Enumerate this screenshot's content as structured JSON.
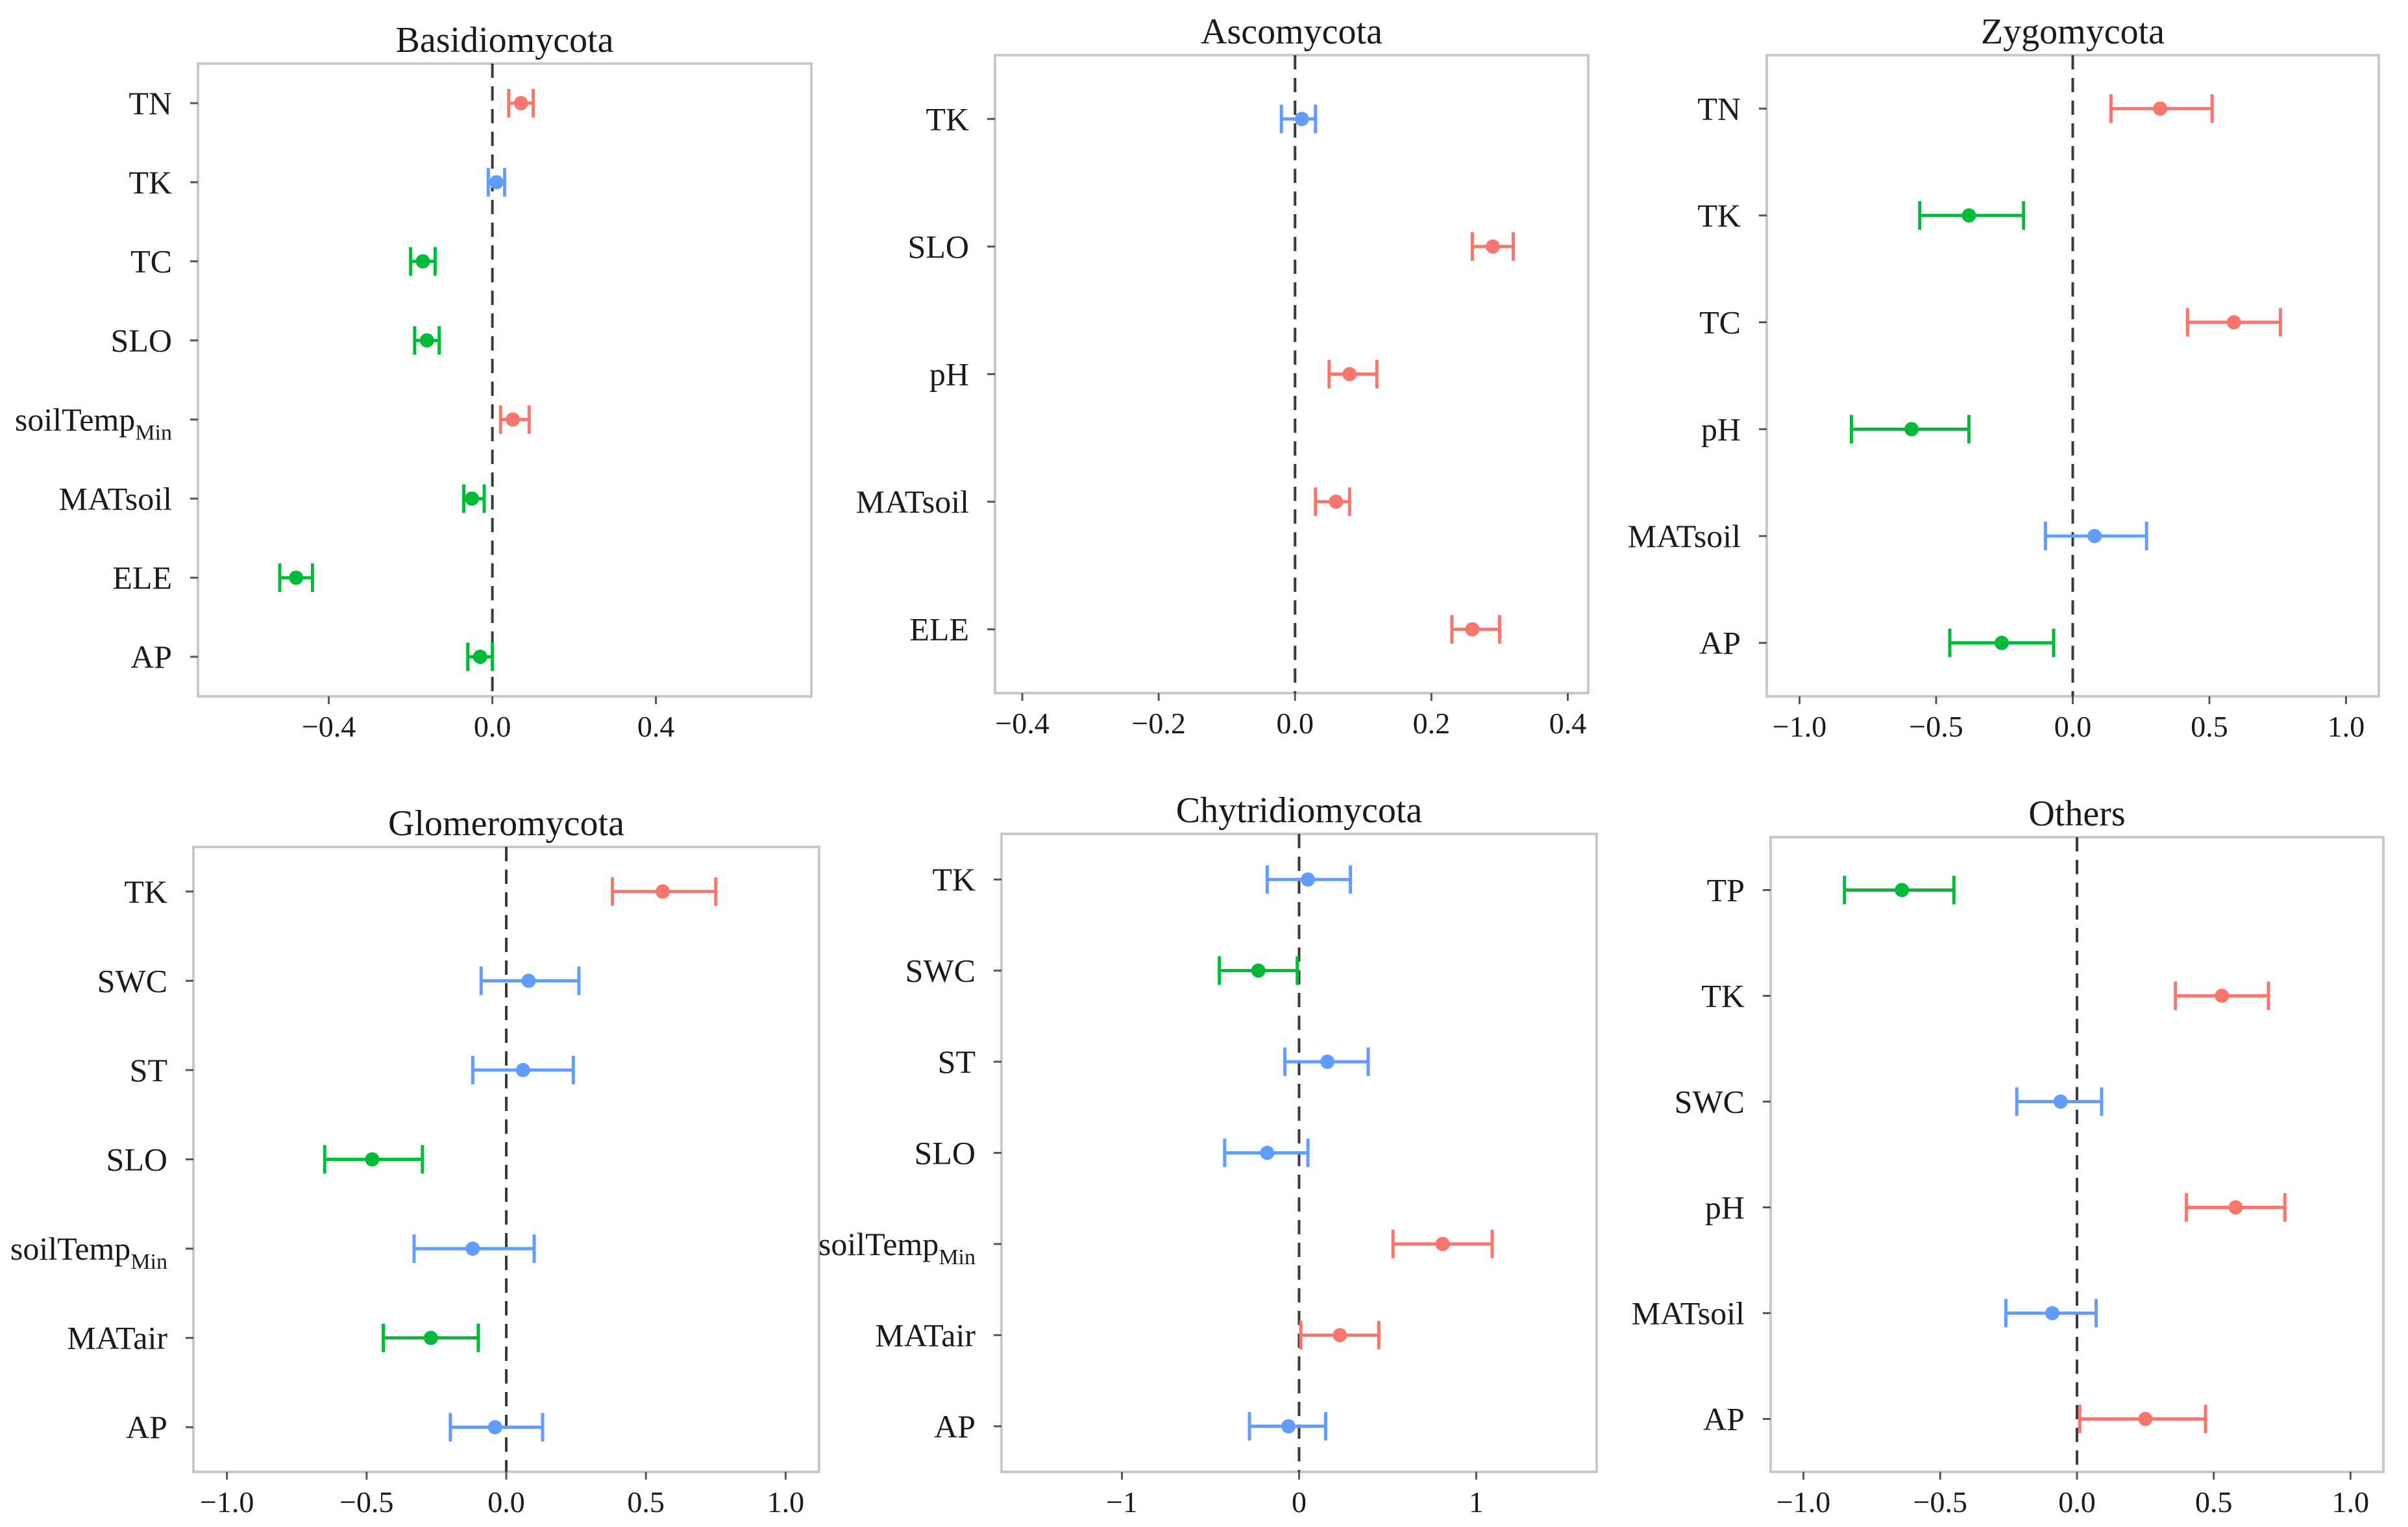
{
  "colors": {
    "positive": "#f8766d",
    "neutral": "#619cff",
    "negative": "#00ba38",
    "frame": "#c8c8c8",
    "zero_line": "#3a3a3a"
  },
  "chart_data": [
    {
      "type": "errorbar",
      "title": "Basidiomycota",
      "xlim": [
        -0.72,
        0.78
      ],
      "xticks": [
        -0.4,
        0.0,
        0.4
      ],
      "xtick_labels": [
        "−0.4",
        "0.0",
        "0.4"
      ],
      "variables": [
        {
          "label": "TN",
          "sub": "",
          "value": 0.07,
          "low": 0.04,
          "high": 0.1,
          "color": "positive"
        },
        {
          "label": "TK",
          "sub": "",
          "value": 0.01,
          "low": -0.01,
          "high": 0.03,
          "color": "neutral"
        },
        {
          "label": "TC",
          "sub": "",
          "value": -0.17,
          "low": -0.2,
          "high": -0.14,
          "color": "negative"
        },
        {
          "label": "SLO",
          "sub": "",
          "value": -0.16,
          "low": -0.19,
          "high": -0.13,
          "color": "negative"
        },
        {
          "label": "soilTemp",
          "sub": "Min",
          "value": 0.05,
          "low": 0.02,
          "high": 0.09,
          "color": "positive"
        },
        {
          "label": "MATsoil",
          "sub": "",
          "value": -0.05,
          "low": -0.07,
          "high": -0.02,
          "color": "negative"
        },
        {
          "label": "ELE",
          "sub": "",
          "value": -0.48,
          "low": -0.52,
          "high": -0.44,
          "color": "negative"
        },
        {
          "label": "AP",
          "sub": "",
          "value": -0.03,
          "low": -0.06,
          "high": 0.0,
          "color": "negative"
        }
      ]
    },
    {
      "type": "errorbar",
      "title": "Ascomycota",
      "xlim": [
        -0.44,
        0.43
      ],
      "xticks": [
        -0.4,
        -0.2,
        0.0,
        0.2,
        0.4
      ],
      "xtick_labels": [
        "−0.4",
        "−0.2",
        "0.0",
        "0.2",
        "0.4"
      ],
      "variables": [
        {
          "label": "TK",
          "sub": "",
          "value": 0.01,
          "low": -0.02,
          "high": 0.03,
          "color": "neutral"
        },
        {
          "label": "SLO",
          "sub": "",
          "value": 0.29,
          "low": 0.26,
          "high": 0.32,
          "color": "positive"
        },
        {
          "label": "pH",
          "sub": "",
          "value": 0.08,
          "low": 0.05,
          "high": 0.12,
          "color": "positive"
        },
        {
          "label": "MATsoil",
          "sub": "",
          "value": 0.06,
          "low": 0.03,
          "high": 0.08,
          "color": "positive"
        },
        {
          "label": "ELE",
          "sub": "",
          "value": 0.26,
          "low": 0.23,
          "high": 0.3,
          "color": "positive"
        }
      ]
    },
    {
      "type": "errorbar",
      "title": "Zygomycota",
      "xlim": [
        -1.12,
        1.12
      ],
      "xticks": [
        -1.0,
        -0.5,
        0.0,
        0.5,
        1.0
      ],
      "xtick_labels": [
        "−1.0",
        "−0.5",
        "0.0",
        "0.5",
        "1.0"
      ],
      "variables": [
        {
          "label": "TN",
          "sub": "",
          "value": 0.32,
          "low": 0.14,
          "high": 0.51,
          "color": "positive"
        },
        {
          "label": "TK",
          "sub": "",
          "value": -0.38,
          "low": -0.56,
          "high": -0.18,
          "color": "negative"
        },
        {
          "label": "TC",
          "sub": "",
          "value": 0.59,
          "low": 0.42,
          "high": 0.76,
          "color": "positive"
        },
        {
          "label": "pH",
          "sub": "",
          "value": -0.59,
          "low": -0.81,
          "high": -0.38,
          "color": "negative"
        },
        {
          "label": "MATsoil",
          "sub": "",
          "value": 0.08,
          "low": -0.1,
          "high": 0.27,
          "color": "neutral"
        },
        {
          "label": "AP",
          "sub": "",
          "value": -0.26,
          "low": -0.45,
          "high": -0.07,
          "color": "negative"
        }
      ]
    },
    {
      "type": "errorbar",
      "title": "Glomeromycota",
      "xlim": [
        -1.12,
        1.12
      ],
      "xticks": [
        -1.0,
        -0.5,
        0.0,
        0.5,
        1.0
      ],
      "xtick_labels": [
        "−1.0",
        "−0.5",
        "0.0",
        "0.5",
        "1.0"
      ],
      "variables": [
        {
          "label": "TK",
          "sub": "",
          "value": 0.56,
          "low": 0.38,
          "high": 0.75,
          "color": "positive"
        },
        {
          "label": "SWC",
          "sub": "",
          "value": 0.08,
          "low": -0.09,
          "high": 0.26,
          "color": "neutral"
        },
        {
          "label": "ST",
          "sub": "",
          "value": 0.06,
          "low": -0.12,
          "high": 0.24,
          "color": "neutral"
        },
        {
          "label": "SLO",
          "sub": "",
          "value": -0.48,
          "low": -0.65,
          "high": -0.3,
          "color": "negative"
        },
        {
          "label": "soilTemp",
          "sub": "Min",
          "value": -0.12,
          "low": -0.33,
          "high": 0.1,
          "color": "neutral"
        },
        {
          "label": "MATair",
          "sub": "",
          "value": -0.27,
          "low": -0.44,
          "high": -0.1,
          "color": "negative"
        },
        {
          "label": "AP",
          "sub": "",
          "value": -0.04,
          "low": -0.2,
          "high": 0.13,
          "color": "neutral"
        }
      ]
    },
    {
      "type": "errorbar",
      "title": "Chytridiomycota",
      "xlim": [
        -1.68,
        1.68
      ],
      "xticks": [
        -1,
        0,
        1
      ],
      "xtick_labels": [
        "−1",
        "0",
        "1"
      ],
      "variables": [
        {
          "label": "TK",
          "sub": "",
          "value": 0.05,
          "low": -0.18,
          "high": 0.29,
          "color": "neutral"
        },
        {
          "label": "SWC",
          "sub": "",
          "value": -0.23,
          "low": -0.45,
          "high": -0.01,
          "color": "negative"
        },
        {
          "label": "ST",
          "sub": "",
          "value": 0.16,
          "low": -0.08,
          "high": 0.39,
          "color": "neutral"
        },
        {
          "label": "SLO",
          "sub": "",
          "value": -0.18,
          "low": -0.42,
          "high": 0.05,
          "color": "neutral"
        },
        {
          "label": "soilTemp",
          "sub": "Min",
          "value": 0.81,
          "low": 0.53,
          "high": 1.09,
          "color": "positive"
        },
        {
          "label": "MATair",
          "sub": "",
          "value": 0.23,
          "low": 0.01,
          "high": 0.45,
          "color": "positive"
        },
        {
          "label": "AP",
          "sub": "",
          "value": -0.06,
          "low": -0.28,
          "high": 0.15,
          "color": "neutral"
        }
      ]
    },
    {
      "type": "errorbar",
      "title": "Others",
      "xlim": [
        -1.12,
        1.12
      ],
      "xticks": [
        -1.0,
        -0.5,
        0.0,
        0.5,
        1.0
      ],
      "xtick_labels": [
        "−1.0",
        "−0.5",
        "0.0",
        "0.5",
        "1.0"
      ],
      "variables": [
        {
          "label": "TP",
          "sub": "",
          "value": -0.64,
          "low": -0.85,
          "high": -0.45,
          "color": "negative"
        },
        {
          "label": "TK",
          "sub": "",
          "value": 0.53,
          "low": 0.36,
          "high": 0.7,
          "color": "positive"
        },
        {
          "label": "SWC",
          "sub": "",
          "value": -0.06,
          "low": -0.22,
          "high": 0.09,
          "color": "neutral"
        },
        {
          "label": "pH",
          "sub": "",
          "value": 0.58,
          "low": 0.4,
          "high": 0.76,
          "color": "positive"
        },
        {
          "label": "MATsoil",
          "sub": "",
          "value": -0.09,
          "low": -0.26,
          "high": 0.07,
          "color": "neutral"
        },
        {
          "label": "AP",
          "sub": "",
          "value": 0.25,
          "low": 0.01,
          "high": 0.47,
          "color": "positive"
        }
      ]
    }
  ]
}
